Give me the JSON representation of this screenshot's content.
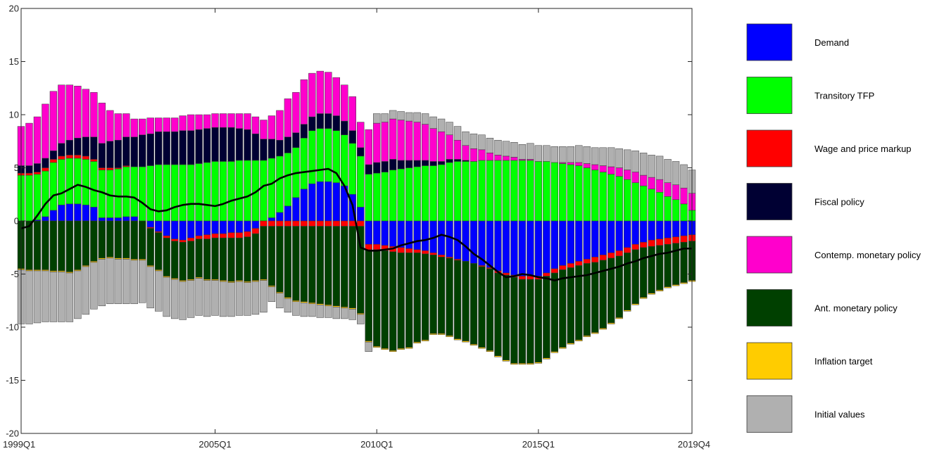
{
  "chart_data": {
    "type": "bar",
    "stacked": true,
    "title": "",
    "xlabel": "",
    "ylabel": "",
    "ylim": [
      -20,
      20
    ],
    "yticks": [
      -20,
      -15,
      -10,
      -5,
      0,
      5,
      10,
      15,
      20
    ],
    "xtick_labels": [
      {
        "label": "1999Q1",
        "period": 0
      },
      {
        "label": "2005Q1",
        "period": 24
      },
      {
        "label": "2010Q1",
        "period": 44
      },
      {
        "label": "2015Q1",
        "period": 64
      },
      {
        "label": "2019Q4",
        "period": 83
      }
    ],
    "periods": 84,
    "grid": false,
    "legend_position": "right",
    "series": [
      {
        "name": "Demand",
        "color": "#0000FF",
        "values": [
          0.0,
          0.0,
          0.1,
          0.4,
          1.0,
          1.5,
          1.6,
          1.6,
          1.5,
          1.3,
          0.3,
          0.3,
          0.3,
          0.4,
          0.4,
          0.0,
          -0.6,
          -1.0,
          -1.4,
          -1.7,
          -1.8,
          -1.6,
          -1.4,
          -1.3,
          -1.2,
          -1.2,
          -1.1,
          -1.1,
          -1.0,
          -0.7,
          0.0,
          0.3,
          0.8,
          1.4,
          2.2,
          3.0,
          3.5,
          3.7,
          3.7,
          3.6,
          3.3,
          2.5,
          1.3,
          -2.2,
          -2.2,
          -2.3,
          -2.4,
          -2.5,
          -2.6,
          -2.7,
          -2.8,
          -3.0,
          -3.2,
          -3.4,
          -3.6,
          -3.8,
          -4.0,
          -4.2,
          -4.4,
          -4.7,
          -4.9,
          -5.1,
          -5.2,
          -5.2,
          -5.2,
          -4.9,
          -4.5,
          -4.2,
          -4.0,
          -3.8,
          -3.6,
          -3.4,
          -3.2,
          -3.0,
          -2.8,
          -2.5,
          -2.2,
          -2.0,
          -1.8,
          -1.7,
          -1.6,
          -1.5,
          -1.4,
          -1.3
        ]
      },
      {
        "name": "Transitory TFP",
        "color": "#00FF00",
        "values": [
          4.3,
          4.3,
          4.3,
          4.3,
          4.5,
          4.3,
          4.3,
          4.3,
          4.3,
          4.3,
          4.5,
          4.5,
          4.6,
          4.7,
          4.7,
          5.1,
          5.2,
          5.3,
          5.3,
          5.3,
          5.3,
          5.3,
          5.4,
          5.5,
          5.6,
          5.6,
          5.6,
          5.7,
          5.7,
          5.7,
          5.7,
          5.6,
          5.3,
          5.0,
          4.7,
          4.8,
          5.0,
          5.0,
          5.0,
          4.9,
          4.8,
          4.8,
          4.8,
          4.4,
          4.5,
          4.6,
          4.8,
          4.9,
          5.0,
          5.1,
          5.2,
          5.2,
          5.3,
          5.5,
          5.6,
          5.6,
          5.6,
          5.7,
          5.7,
          5.7,
          5.7,
          5.7,
          5.7,
          5.7,
          5.6,
          5.6,
          5.5,
          5.4,
          5.3,
          5.2,
          5.0,
          4.8,
          4.6,
          4.4,
          4.2,
          3.9,
          3.6,
          3.3,
          3.0,
          2.7,
          2.3,
          2.0,
          1.6,
          1.0
        ]
      },
      {
        "name": "Wage and price markup",
        "color": "#FF0000",
        "values": [
          0.2,
          0.2,
          0.2,
          0.3,
          0.3,
          0.3,
          0.3,
          0.3,
          0.3,
          0.2,
          0.2,
          0.2,
          0.1,
          0.1,
          0.0,
          0.0,
          -0.1,
          -0.1,
          -0.2,
          -0.2,
          -0.2,
          -0.3,
          -0.3,
          -0.4,
          -0.4,
          -0.4,
          -0.5,
          -0.5,
          -0.5,
          -0.5,
          -0.5,
          -0.5,
          -0.5,
          -0.5,
          -0.5,
          -0.5,
          -0.5,
          -0.5,
          -0.5,
          -0.5,
          -0.5,
          -0.5,
          -0.5,
          -0.5,
          -0.5,
          -0.5,
          -0.5,
          -0.5,
          -0.4,
          -0.3,
          -0.3,
          -0.2,
          -0.2,
          -0.1,
          -0.1,
          0.0,
          0.0,
          -0.1,
          -0.1,
          -0.2,
          -0.2,
          -0.2,
          -0.3,
          -0.3,
          -0.3,
          -0.3,
          -0.4,
          -0.4,
          -0.4,
          -0.4,
          -0.4,
          -0.5,
          -0.5,
          -0.5,
          -0.5,
          -0.5,
          -0.5,
          -0.5,
          -0.6,
          -0.6,
          -0.6,
          -0.6,
          -0.6,
          -0.6
        ]
      },
      {
        "name": "Fiscal policy",
        "color": "#000033",
        "values": [
          0.7,
          0.7,
          0.8,
          0.9,
          0.8,
          1.2,
          1.4,
          1.6,
          1.8,
          2.1,
          2.3,
          2.5,
          2.6,
          2.7,
          2.8,
          3.0,
          3.0,
          3.1,
          3.1,
          3.1,
          3.2,
          3.2,
          3.2,
          3.2,
          3.2,
          3.2,
          3.2,
          3.0,
          2.9,
          2.5,
          2.0,
          1.8,
          1.5,
          1.5,
          1.4,
          1.3,
          1.3,
          1.4,
          1.4,
          1.4,
          1.3,
          1.2,
          0.8,
          0.9,
          1.0,
          1.0,
          1.0,
          0.8,
          0.7,
          0.6,
          0.5,
          0.4,
          0.3,
          0.3,
          0.2,
          0.1,
          0.0,
          0.0,
          0.0,
          0.0,
          0.0,
          0.0,
          0.0,
          0.0,
          0.0,
          0.0,
          0.0,
          0.0,
          0.0,
          0.0,
          0.0,
          0.0,
          0.0,
          0.0,
          0.0,
          0.0,
          0.0,
          0.0,
          0.0,
          0.0,
          0.0,
          0.0,
          0.0,
          0.0
        ]
      },
      {
        "name": "Contemp. monetary policy",
        "color": "#FF00CC",
        "values": [
          3.7,
          4.0,
          4.4,
          5.1,
          5.6,
          5.5,
          5.2,
          4.9,
          4.5,
          4.2,
          3.8,
          2.9,
          2.5,
          2.2,
          1.7,
          1.5,
          1.5,
          1.3,
          1.3,
          1.3,
          1.4,
          1.5,
          1.4,
          1.3,
          1.3,
          1.3,
          1.3,
          1.4,
          1.5,
          1.6,
          1.8,
          2.2,
          2.8,
          3.6,
          3.8,
          4.2,
          4.1,
          4.0,
          3.9,
          3.6,
          3.4,
          3.2,
          2.4,
          3.3,
          3.7,
          3.7,
          3.8,
          3.8,
          3.7,
          3.6,
          3.4,
          3.1,
          2.8,
          2.3,
          1.8,
          1.4,
          1.2,
          1.0,
          0.7,
          0.5,
          0.4,
          0.3,
          0.1,
          0.1,
          0.0,
          0.0,
          0.0,
          0.1,
          0.2,
          0.3,
          0.4,
          0.5,
          0.6,
          0.7,
          0.8,
          0.9,
          1.0,
          1.0,
          1.1,
          1.2,
          1.3,
          1.4,
          1.5,
          1.6
        ]
      },
      {
        "name": "Ant. monetary policy",
        "color": "#004000",
        "values": [
          -4.5,
          -4.6,
          -4.6,
          -4.6,
          -4.7,
          -4.7,
          -4.8,
          -4.6,
          -4.2,
          -3.8,
          -3.5,
          -3.4,
          -3.5,
          -3.5,
          -3.6,
          -3.6,
          -3.5,
          -3.5,
          -3.6,
          -3.5,
          -3.6,
          -3.6,
          -3.6,
          -3.8,
          -3.9,
          -4.0,
          -4.1,
          -4.0,
          -4.2,
          -4.4,
          -5.0,
          -5.6,
          -6.2,
          -6.7,
          -7.0,
          -7.1,
          -7.2,
          -7.3,
          -7.4,
          -7.5,
          -7.6,
          -7.7,
          -8.2,
          -8.6,
          -9.1,
          -9.2,
          -9.3,
          -9.0,
          -8.9,
          -8.4,
          -8.1,
          -7.4,
          -7.2,
          -7.3,
          -7.4,
          -7.5,
          -7.6,
          -7.6,
          -7.7,
          -7.8,
          -8.0,
          -8.1,
          -7.9,
          -7.9,
          -7.8,
          -7.7,
          -7.4,
          -7.3,
          -7.1,
          -7.0,
          -6.8,
          -6.6,
          -6.4,
          -6.1,
          -5.8,
          -5.4,
          -5.1,
          -4.7,
          -4.4,
          -4.2,
          -4.0,
          -3.9,
          -3.8,
          -3.7
        ]
      },
      {
        "name": "Inflation target",
        "color": "#FFCC00",
        "values": [
          -0.1,
          -0.1,
          -0.1,
          -0.1,
          -0.1,
          -0.1,
          -0.1,
          -0.1,
          -0.1,
          -0.1,
          -0.1,
          -0.1,
          -0.1,
          -0.1,
          -0.1,
          -0.1,
          -0.1,
          -0.1,
          -0.1,
          -0.1,
          -0.1,
          -0.1,
          -0.1,
          -0.1,
          -0.1,
          -0.1,
          -0.1,
          -0.1,
          -0.1,
          -0.1,
          -0.1,
          -0.1,
          -0.1,
          -0.1,
          -0.1,
          -0.1,
          -0.1,
          -0.1,
          -0.1,
          -0.1,
          -0.1,
          -0.1,
          -0.1,
          -0.1,
          -0.1,
          -0.1,
          -0.1,
          -0.1,
          -0.1,
          -0.1,
          -0.1,
          -0.1,
          -0.1,
          -0.1,
          -0.1,
          -0.1,
          -0.1,
          -0.1,
          -0.1,
          -0.1,
          -0.1,
          -0.1,
          -0.1,
          -0.1,
          -0.1,
          -0.1,
          -0.1,
          -0.1,
          -0.1,
          -0.1,
          -0.1,
          -0.1,
          -0.1,
          -0.1,
          -0.1,
          -0.1,
          -0.1,
          -0.1,
          -0.1,
          -0.1,
          -0.1,
          -0.1,
          -0.1,
          -0.1
        ]
      },
      {
        "name": "Initial values",
        "color": "#B0B0B0",
        "values": [
          -5.1,
          -5.0,
          -4.9,
          -4.8,
          -4.7,
          -4.7,
          -4.6,
          -4.5,
          -4.5,
          -4.4,
          -4.4,
          -4.3,
          -4.2,
          -4.2,
          -4.1,
          -4.0,
          -3.9,
          -3.8,
          -3.7,
          -3.7,
          -3.6,
          -3.5,
          -3.5,
          -3.4,
          -3.3,
          -3.3,
          -3.2,
          -3.2,
          -3.1,
          -3.1,
          -3.0,
          -1.4,
          -1.4,
          -1.3,
          -1.3,
          -1.3,
          -1.2,
          -1.2,
          -1.1,
          -1.1,
          -1.0,
          -1.0,
          -0.9,
          -0.9,
          0.9,
          0.8,
          0.8,
          0.8,
          0.8,
          0.9,
          1.0,
          1.1,
          1.2,
          1.2,
          1.3,
          1.3,
          1.4,
          1.4,
          1.4,
          1.4,
          1.4,
          1.4,
          1.4,
          1.5,
          1.5,
          1.5,
          1.5,
          1.5,
          1.5,
          1.6,
          1.6,
          1.6,
          1.7,
          1.8,
          1.8,
          1.9,
          2.0,
          2.1,
          2.1,
          2.2,
          2.2,
          2.2,
          2.2,
          2.2
        ]
      }
    ],
    "line": {
      "color": "#000000",
      "values": [
        -0.7,
        -0.5,
        0.5,
        1.6,
        2.4,
        2.6,
        3.0,
        3.4,
        3.2,
        2.9,
        2.7,
        2.4,
        2.3,
        2.3,
        2.2,
        1.7,
        1.1,
        0.9,
        1.0,
        1.3,
        1.5,
        1.6,
        1.6,
        1.5,
        1.4,
        1.6,
        1.9,
        2.1,
        2.3,
        2.7,
        3.3,
        3.5,
        4.0,
        4.3,
        4.5,
        4.6,
        4.7,
        4.8,
        4.9,
        4.5,
        3.3,
        1.5,
        -2.5,
        -2.8,
        -2.8,
        -2.7,
        -2.6,
        -2.3,
        -2.1,
        -1.9,
        -1.8,
        -1.6,
        -1.3,
        -1.5,
        -1.8,
        -2.4,
        -3.1,
        -3.6,
        -4.2,
        -4.8,
        -5.3,
        -5.2,
        -5.0,
        -5.1,
        -5.3,
        -5.4,
        -5.6,
        -5.4,
        -5.3,
        -5.2,
        -5.1,
        -4.9,
        -4.7,
        -4.5,
        -4.3,
        -4.0,
        -3.8,
        -3.5,
        -3.3,
        -3.1,
        -3.0,
        -2.8,
        -2.6,
        -2.6
      ]
    }
  }
}
